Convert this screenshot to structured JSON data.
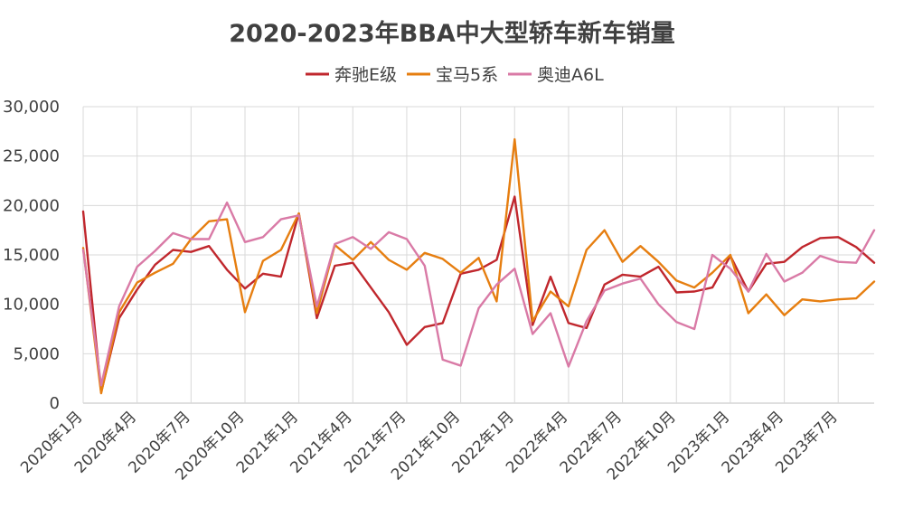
{
  "chart_data": {
    "type": "line",
    "title": "2020-2023年BBA中大型轿车新车销量",
    "xlabel": "",
    "ylabel": "",
    "ylim": [
      0,
      30000
    ],
    "yticks": [
      "0",
      "5,000",
      "10,000",
      "15,000",
      "20,000",
      "25,000",
      "30,000"
    ],
    "ytick_values": [
      0,
      5000,
      10000,
      15000,
      20000,
      25000,
      30000
    ],
    "grid": true,
    "legend_position": "top-center",
    "x": [
      "2020-01",
      "2020-02",
      "2020-03",
      "2020-04",
      "2020-05",
      "2020-06",
      "2020-07",
      "2020-08",
      "2020-09",
      "2020-10",
      "2020-11",
      "2020-12",
      "2021-01",
      "2021-02",
      "2021-03",
      "2021-04",
      "2021-05",
      "2021-06",
      "2021-07",
      "2021-08",
      "2021-09",
      "2021-10",
      "2021-11",
      "2021-12",
      "2022-01",
      "2022-02",
      "2022-03",
      "2022-04",
      "2022-05",
      "2022-06",
      "2022-07",
      "2022-08",
      "2022-09",
      "2022-10",
      "2022-11",
      "2022-12",
      "2023-01",
      "2023-02",
      "2023-03",
      "2023-04",
      "2023-05",
      "2023-06",
      "2023-07",
      "2023-08",
      "2023-09"
    ],
    "xticks": [
      "2020年1月",
      "2020年4月",
      "2020年7月",
      "2020年10月",
      "2021年1月",
      "2021年4月",
      "2021年7月",
      "2021年10月",
      "2022年1月",
      "2022年4月",
      "2022年7月",
      "2022年10月",
      "2023年1月",
      "2023年4月",
      "2023年7月"
    ],
    "series": [
      {
        "name": "奔驰E级",
        "color": "#c0272d",
        "values": [
          19400,
          1100,
          8600,
          11500,
          14000,
          15500,
          15300,
          15900,
          13500,
          11600,
          13100,
          12800,
          19200,
          8600,
          13900,
          14200,
          11700,
          9200,
          5900,
          7700,
          8100,
          13100,
          13500,
          14500,
          20900,
          7900,
          12800,
          8100,
          7600,
          12000,
          13000,
          12800,
          13800,
          11200,
          11300,
          11700,
          14900,
          11300,
          14100,
          14300,
          15800,
          16700,
          16800,
          15800,
          14200
        ]
      },
      {
        "name": "宝马5系",
        "color": "#e67e10",
        "values": [
          15700,
          1000,
          9200,
          12200,
          13200,
          14100,
          16600,
          18400,
          18600,
          9200,
          14400,
          15500,
          19200,
          9100,
          16000,
          14500,
          16300,
          14500,
          13500,
          15200,
          14600,
          13200,
          14700,
          10300,
          26700,
          8300,
          11300,
          9800,
          15500,
          17500,
          14300,
          15900,
          14300,
          12400,
          11700,
          13200,
          15000,
          9100,
          11000,
          8900,
          10500,
          10300,
          10500,
          10600,
          12300
        ]
      },
      {
        "name": "奥迪A6L",
        "color": "#d97aa6",
        "values": [
          15500,
          1800,
          9800,
          13800,
          15400,
          17200,
          16600,
          16600,
          20300,
          16300,
          16800,
          18600,
          19000,
          9800,
          16100,
          16800,
          15600,
          17300,
          16600,
          13900,
          4400,
          3800,
          9600,
          12000,
          13600,
          7000,
          9100,
          3700,
          8300,
          11400,
          12100,
          12600,
          10000,
          8200,
          7500,
          15000,
          13600,
          11300,
          15100,
          12300,
          13200,
          14900,
          14300,
          14200,
          17500
        ]
      }
    ]
  }
}
